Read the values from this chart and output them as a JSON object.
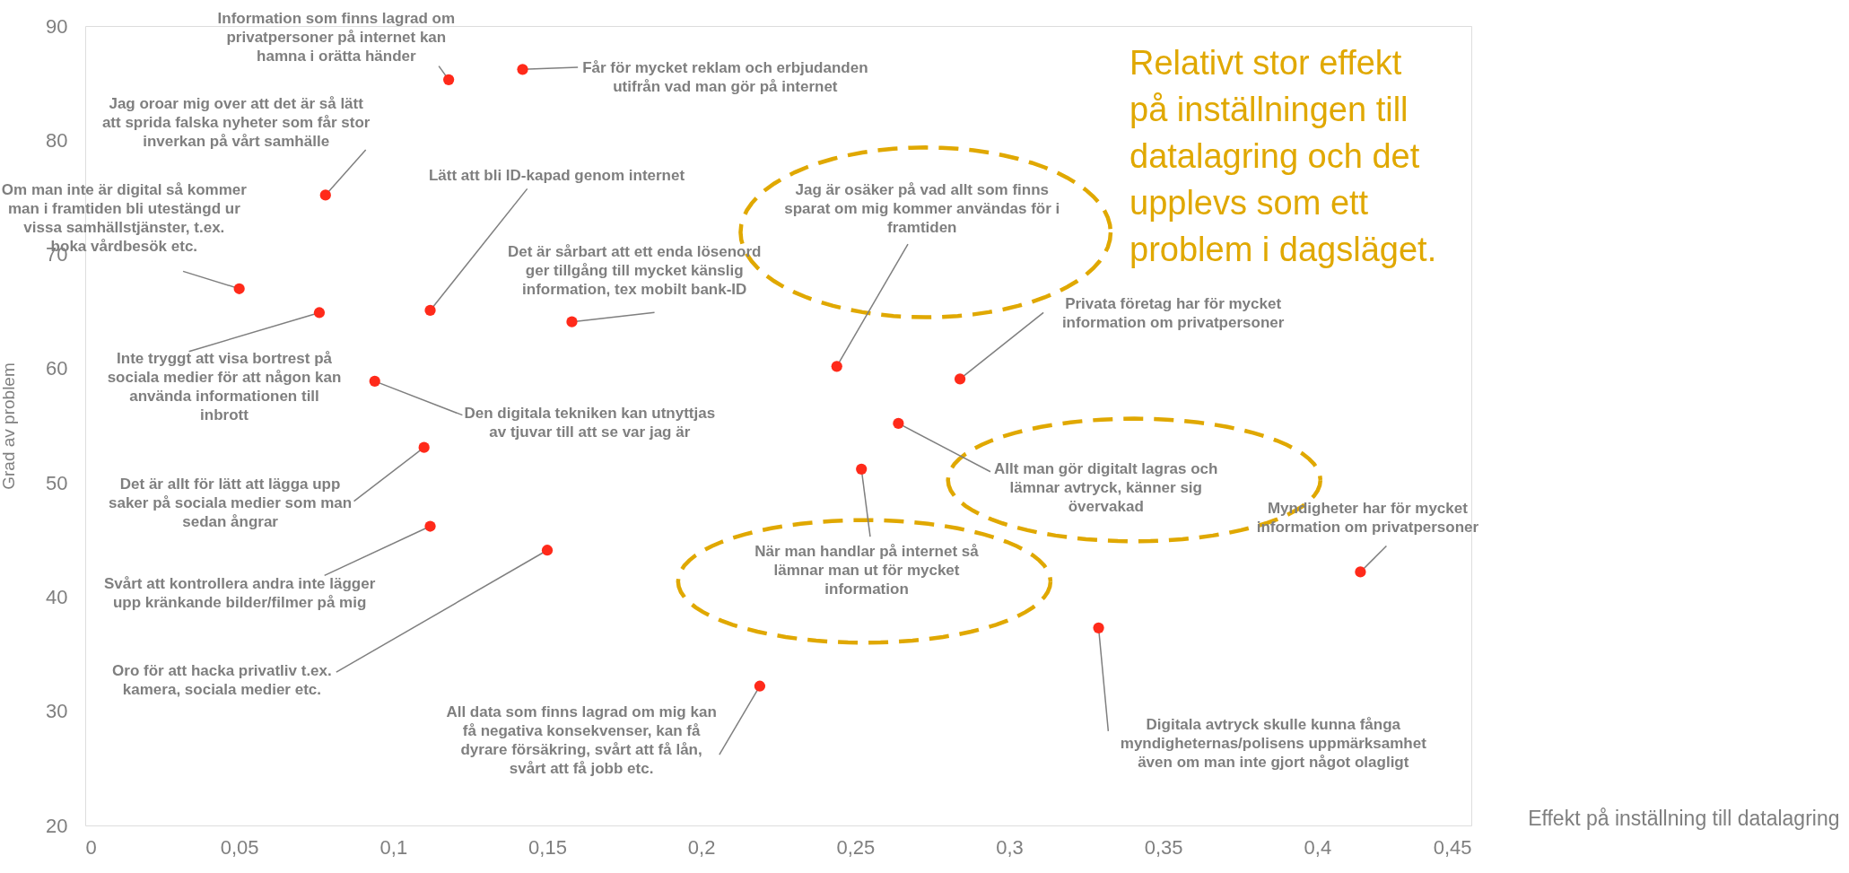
{
  "chart_data": {
    "type": "scatter",
    "xlabel": "Effekt på inställning till datalagring",
    "ylabel": "Grad av problem",
    "xlim": [
      0,
      0.45
    ],
    "xticks": [
      {
        "value": 0,
        "label": "0"
      },
      {
        "value": 0.05,
        "label": "0,05"
      },
      {
        "value": 0.1,
        "label": "0,1"
      },
      {
        "value": 0.15,
        "label": "0,15"
      },
      {
        "value": 0.2,
        "label": "0,2"
      },
      {
        "value": 0.25,
        "label": "0,25"
      },
      {
        "value": 0.3,
        "label": "0,3"
      },
      {
        "value": 0.35,
        "label": "0,35"
      },
      {
        "value": 0.4,
        "label": "0,4"
      },
      {
        "value": 0.45,
        "label": "0,45"
      }
    ],
    "ylim": [
      20,
      90
    ],
    "yticks": [
      20,
      30,
      40,
      50,
      60,
      70,
      80,
      90
    ],
    "grid": false,
    "marker": "circle",
    "series": [
      {
        "color": "#ff2a1a",
        "x": [
          0.118,
          0.142,
          0.078,
          0.05,
          0.076,
          0.112,
          0.158,
          0.094,
          0.244,
          0.284,
          0.11,
          0.264,
          0.252,
          0.112,
          0.15,
          0.414,
          0.329,
          0.219
        ],
        "values": [
          85.3,
          86.2,
          75.2,
          67.0,
          64.9,
          65.1,
          64.1,
          58.9,
          60.2,
          59.1,
          53.1,
          55.2,
          51.2,
          46.2,
          44.1,
          42.2,
          37.3,
          32.2
        ]
      }
    ],
    "annotations": [
      {
        "text": "Information som finns lagrad om privatpersoner på internet kan hamna i orätta händer",
        "x": 0.118,
        "y": 85.3
      },
      {
        "text": "Får för mycket reklam och erbjudanden utifrån vad man gör på internet",
        "x": 0.142,
        "y": 86.2
      },
      {
        "text": "Jag oroar mig over att det är så lätt att sprida falska nyheter som får stor inverkan på vårt samhälle",
        "x": 0.078,
        "y": 75.2
      },
      {
        "text": "Om man inte är digital så kommer man i framtiden bli utestängd ur vissa samhällstjänster, t.ex. boka vårdbesök etc.",
        "x": 0.05,
        "y": 67.0
      },
      {
        "text": "Inte tryggt att visa bortrest på sociala medier för att någon kan använda informationen till inbrott",
        "x": 0.076,
        "y": 64.9
      },
      {
        "text": "Lätt att bli ID-kapad genom internet",
        "x": 0.112,
        "y": 65.1
      },
      {
        "text": "Det är sårbart att ett enda lösenord ger tillgång till mycket känslig information, tex mobilt bank-ID",
        "x": 0.158,
        "y": 64.1
      },
      {
        "text": "Den digitala tekniken kan utnyttjas av tjuvar till att se var jag är",
        "x": 0.094,
        "y": 58.9
      },
      {
        "text": "Jag är osäker på vad allt som finns sparat om mig kommer användas för i framtiden",
        "x": 0.244,
        "y": 60.2
      },
      {
        "text": "Privata företag har för mycket information om privatpersoner",
        "x": 0.284,
        "y": 59.1
      },
      {
        "text": "Det är allt för lätt att lägga upp saker på sociala medier som man sedan ångrar",
        "x": 0.11,
        "y": 53.1
      },
      {
        "text": "Allt man gör digitalt lagras och lämnar avtryck, känner sig övervakad",
        "x": 0.264,
        "y": 55.2
      },
      {
        "text": "När man handlar på internet så lämnar man ut för mycket information",
        "x": 0.252,
        "y": 51.2
      },
      {
        "text": "Svårt att kontrollera andra inte lägger upp kränkande bilder/filmer på mig",
        "x": 0.112,
        "y": 46.2
      },
      {
        "text": "Oro för att hacka privatliv t.ex. kamera, sociala medier etc.",
        "x": 0.15,
        "y": 44.1
      },
      {
        "text": "Myndigheter har för mycket information om privatpersoner",
        "x": 0.414,
        "y": 42.2
      },
      {
        "text": "Digitala avtryck skulle kunna fånga myndigheternas/polisens uppmärksamhet även om man inte gjort något olagligt",
        "x": 0.329,
        "y": 37.3
      },
      {
        "text": "All data som finns lagrad om mig kan få negativa konsekvenser, kan få dyrare försäkring, svårt att få lån, svårt att få jobb etc.",
        "x": 0.219,
        "y": 32.2
      },
      "Relativt stor effekt på inställningen till datalagring och det upplevs som ett problem i dagsläget."
    ]
  }
}
